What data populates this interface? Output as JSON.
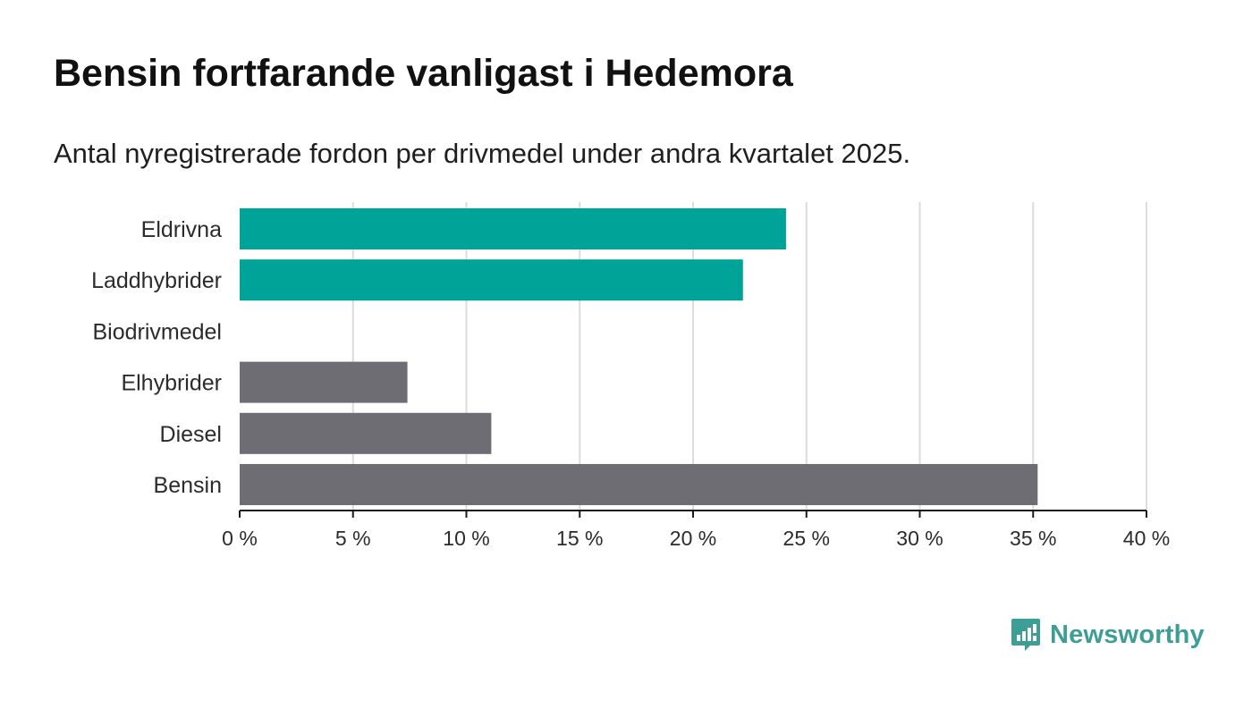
{
  "title": "Bensin fortfarande vanligast i Hedemora",
  "subtitle": "Antal nyregistrerade fordon per drivmedel under andra kvartalet 2025.",
  "brand": {
    "name": "Newsworthy",
    "icon": "newsworthy-logo-icon",
    "color": "#3d9e95"
  },
  "colors": {
    "highlight": "#00a398",
    "default": "#6e6d73",
    "grid": "#dcdcdc",
    "axis": "#1a1a1a"
  },
  "chart_data": {
    "type": "bar",
    "orientation": "horizontal",
    "title": "Bensin fortfarande vanligast i Hedemora",
    "subtitle": "Antal nyregistrerade fordon per drivmedel under andra kvartalet 2025.",
    "categories": [
      "Eldrivna",
      "Laddhybrider",
      "Biodrivmedel",
      "Elhybrider",
      "Diesel",
      "Bensin"
    ],
    "values": [
      24.1,
      22.2,
      0,
      7.4,
      11.1,
      35.2
    ],
    "bar_colors": [
      "#00a398",
      "#00a398",
      "#6e6d73",
      "#6e6d73",
      "#6e6d73",
      "#6e6d73"
    ],
    "xlim": [
      0,
      40
    ],
    "xticks": [
      0,
      5,
      10,
      15,
      20,
      25,
      30,
      35,
      40
    ],
    "xtick_labels": [
      "0 %",
      "5 %",
      "10 %",
      "15 %",
      "20 %",
      "25 %",
      "30 %",
      "35 %",
      "40 %"
    ],
    "xlabel": "",
    "ylabel": "",
    "grid": "vertical",
    "legend": "none"
  }
}
